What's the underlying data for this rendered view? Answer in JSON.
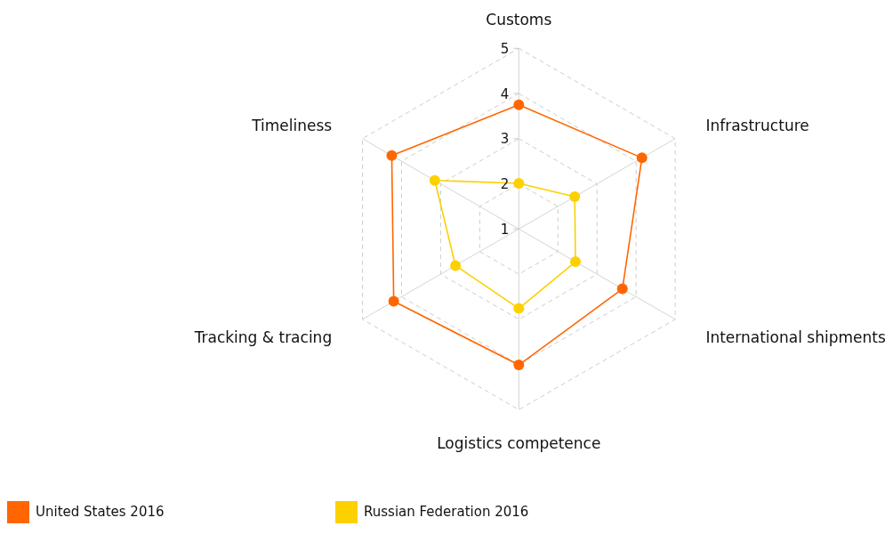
{
  "chart_data": {
    "type": "radar",
    "categories": [
      "Customs",
      "Infrastructure",
      "International shipments",
      "Logistics competence",
      "Tracking & tracing",
      "Timeliness"
    ],
    "series": [
      {
        "name": "United States 2016",
        "color": "#ff6600",
        "values": [
          3.75,
          4.15,
          3.65,
          4.01,
          4.2,
          4.25
        ]
      },
      {
        "name": "Russian Federation 2016",
        "color": "#fdd000",
        "values": [
          2.01,
          2.43,
          2.45,
          2.76,
          2.62,
          3.15
        ]
      }
    ],
    "ylim": [
      1,
      5
    ],
    "yticks": [
      1,
      2,
      3,
      4,
      5
    ],
    "grid": true,
    "legend": "bottom left",
    "marker": "circle"
  }
}
